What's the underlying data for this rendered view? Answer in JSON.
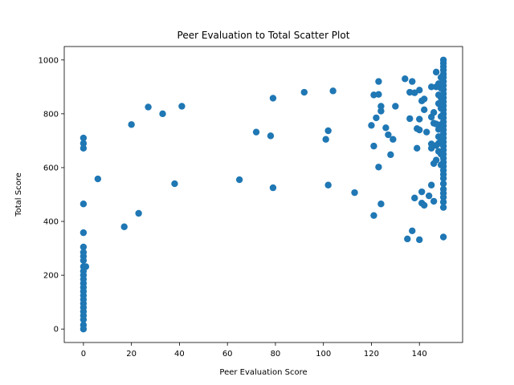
{
  "chart_data": {
    "type": "scatter",
    "title": "Peer Evaluation to Total Scatter Plot",
    "xlabel": "Peer Evaluation Score",
    "ylabel": "Total Score",
    "xlim": [
      -8,
      158
    ],
    "ylim": [
      -50,
      1050
    ],
    "xticks": [
      0,
      20,
      40,
      60,
      80,
      100,
      120,
      140
    ],
    "yticks": [
      0,
      200,
      400,
      600,
      800,
      1000
    ],
    "grid": false,
    "color": "#1f77b4",
    "series": [
      {
        "points": [
          [
            0,
            710
          ],
          [
            0,
            690
          ],
          [
            0,
            672
          ],
          [
            0,
            465
          ],
          [
            0,
            358
          ],
          [
            0,
            305
          ],
          [
            0,
            285
          ],
          [
            0,
            270
          ],
          [
            0,
            255
          ],
          [
            0,
            232
          ],
          [
            0,
            215
          ],
          [
            0,
            200
          ],
          [
            0,
            185
          ],
          [
            0,
            170
          ],
          [
            0,
            155
          ],
          [
            0,
            140
          ],
          [
            0,
            125
          ],
          [
            0,
            110
          ],
          [
            0,
            95
          ],
          [
            0,
            80
          ],
          [
            0,
            65
          ],
          [
            0,
            50
          ],
          [
            0,
            35
          ],
          [
            0,
            15
          ],
          [
            0,
            0
          ],
          [
            1,
            232
          ],
          [
            6,
            558
          ],
          [
            17,
            380
          ],
          [
            20,
            760
          ],
          [
            23,
            430
          ],
          [
            27,
            825
          ],
          [
            33,
            800
          ],
          [
            38,
            540
          ],
          [
            41,
            828
          ],
          [
            65,
            555
          ],
          [
            72,
            732
          ],
          [
            78,
            718
          ],
          [
            79,
            858
          ],
          [
            79,
            525
          ],
          [
            92,
            880
          ],
          [
            101,
            705
          ],
          [
            102,
            737
          ],
          [
            102,
            535
          ],
          [
            104,
            885
          ],
          [
            113,
            507
          ],
          [
            120,
            757
          ],
          [
            121,
            870
          ],
          [
            121,
            680
          ],
          [
            121,
            422
          ],
          [
            122,
            785
          ],
          [
            123,
            920
          ],
          [
            123,
            872
          ],
          [
            123,
            602
          ],
          [
            124,
            810
          ],
          [
            124,
            828
          ],
          [
            124,
            465
          ],
          [
            126,
            748
          ],
          [
            127,
            722
          ],
          [
            128,
            648
          ],
          [
            129,
            705
          ],
          [
            130,
            828
          ],
          [
            134,
            930
          ],
          [
            135,
            335
          ],
          [
            136,
            880
          ],
          [
            136,
            782
          ],
          [
            137,
            920
          ],
          [
            137,
            365
          ],
          [
            138,
            878
          ],
          [
            138,
            487
          ],
          [
            139,
            672
          ],
          [
            139,
            745
          ],
          [
            140,
            888
          ],
          [
            140,
            780
          ],
          [
            140,
            740
          ],
          [
            140,
            332
          ],
          [
            141,
            848
          ],
          [
            141,
            510
          ],
          [
            141,
            468
          ],
          [
            142,
            855
          ],
          [
            142,
            815
          ],
          [
            142,
            460
          ],
          [
            143,
            732
          ],
          [
            144,
            495
          ],
          [
            145,
            900
          ],
          [
            145,
            788
          ],
          [
            145,
            688
          ],
          [
            145,
            672
          ],
          [
            145,
            535
          ],
          [
            146,
            475
          ],
          [
            146,
            615
          ],
          [
            146,
            805
          ],
          [
            146,
            765
          ],
          [
            147,
            955
          ],
          [
            147,
            900
          ],
          [
            147,
            762
          ],
          [
            147,
            682
          ],
          [
            147,
            628
          ],
          [
            148,
            912
          ],
          [
            148,
            870
          ],
          [
            148,
            838
          ],
          [
            148,
            742
          ],
          [
            148,
            715
          ],
          [
            148,
            690
          ],
          [
            148,
            660
          ],
          [
            149,
            935
          ],
          [
            149,
            895
          ],
          [
            149,
            860
          ],
          [
            149,
            820
          ],
          [
            149,
            790
          ],
          [
            149,
            760
          ],
          [
            149,
            700
          ],
          [
            149,
            650
          ],
          [
            149,
            610
          ],
          [
            150,
            1000
          ],
          [
            150,
            988
          ],
          [
            150,
            975
          ],
          [
            150,
            962
          ],
          [
            150,
            948
          ],
          [
            150,
            935
          ],
          [
            150,
            920
          ],
          [
            150,
            905
          ],
          [
            150,
            890
          ],
          [
            150,
            875
          ],
          [
            150,
            860
          ],
          [
            150,
            845
          ],
          [
            150,
            830
          ],
          [
            150,
            815
          ],
          [
            150,
            800
          ],
          [
            150,
            785
          ],
          [
            150,
            770
          ],
          [
            150,
            755
          ],
          [
            150,
            740
          ],
          [
            150,
            725
          ],
          [
            150,
            710
          ],
          [
            150,
            695
          ],
          [
            150,
            680
          ],
          [
            150,
            665
          ],
          [
            150,
            650
          ],
          [
            150,
            635
          ],
          [
            150,
            620
          ],
          [
            150,
            605
          ],
          [
            150,
            590
          ],
          [
            150,
            575
          ],
          [
            150,
            560
          ],
          [
            150,
            540
          ],
          [
            150,
            520
          ],
          [
            150,
            505
          ],
          [
            150,
            490
          ],
          [
            150,
            472
          ],
          [
            150,
            452
          ],
          [
            150,
            342
          ]
        ]
      }
    ]
  }
}
